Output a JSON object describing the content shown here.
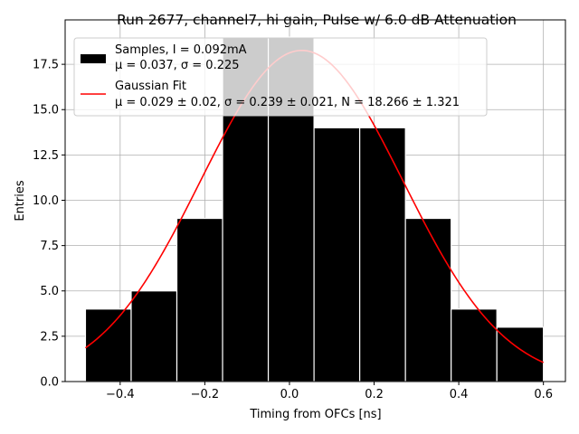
{
  "chart_data": {
    "type": "bar",
    "title": "Run 2677, channel7, hi gain, Pulse w/ 6.0 dB Attenuation",
    "xlabel": "Timing from OFCs [ns]",
    "ylabel": "Entries",
    "xlim": [
      -0.53,
      0.652
    ],
    "ylim": [
      0,
      19.95
    ],
    "xticks": [
      -0.4,
      -0.2,
      0.0,
      0.2,
      0.4,
      0.6
    ],
    "xtick_labels": [
      "−0.4",
      "−0.2",
      "0.0",
      "0.2",
      "0.4",
      "0.6"
    ],
    "yticks": [
      0.0,
      2.5,
      5.0,
      7.5,
      10.0,
      12.5,
      15.0,
      17.5
    ],
    "ytick_labels": [
      "0.0",
      "2.5",
      "5.0",
      "7.5",
      "10.0",
      "12.5",
      "15.0",
      "17.5"
    ],
    "grid": true,
    "legend_placement": "upper-left",
    "bar_color": "#000000",
    "fit_color": "#ff0000",
    "histogram": {
      "name": "Samples, I = 0.092mA",
      "stats": "μ = 0.037, σ = 0.225",
      "bin_edges": [
        -0.482,
        -0.374,
        -0.266,
        -0.158,
        -0.05,
        0.058,
        0.166,
        0.274,
        0.382,
        0.49,
        0.6
      ],
      "counts": [
        4,
        5,
        9,
        19,
        19,
        14,
        14,
        9,
        4,
        3
      ]
    },
    "fit": {
      "name": "Gaussian Fit",
      "stats": "μ = 0.029 ± 0.02, σ = 0.239 ± 0.021, N = 18.266 ± 1.321",
      "mu": 0.029,
      "sigma": 0.239,
      "amplitude": 18.266,
      "x_range": [
        -0.482,
        0.6
      ]
    }
  }
}
